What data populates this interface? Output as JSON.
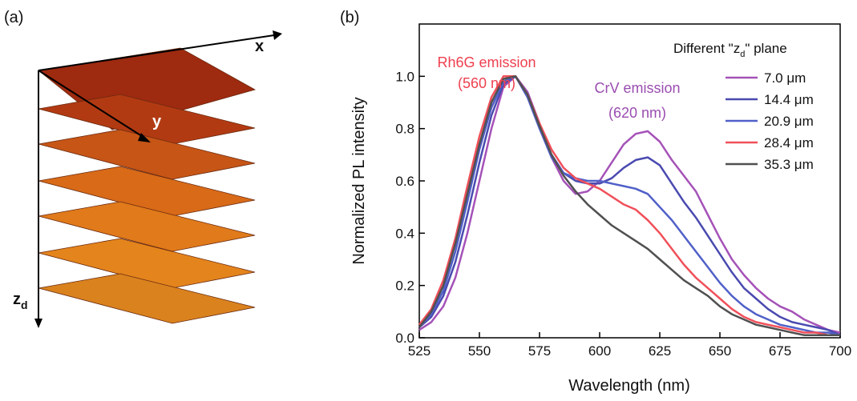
{
  "panel_a": {
    "label": "(a)",
    "x_axis": "x",
    "y_axis": "y",
    "z_axis": "z",
    "z_sub": "d"
  },
  "chart_data": {
    "type": "line",
    "panel_label": "(b)",
    "x_label": "Wavelength (nm)",
    "y_label": "Normalized PL intensity",
    "legend_title": {
      "before": "Different \"z",
      "sub": "d",
      "after": "\" plane"
    },
    "annotations": [
      {
        "text": "Rh6G emission",
        "color": "#ee4050"
      },
      {
        "text": "(560 nm)",
        "color": "#ee4050"
      },
      {
        "text": "CrV emission",
        "color": "#9a4db0"
      },
      {
        "text": "(620 nm)",
        "color": "#9a4db0"
      }
    ],
    "x": [
      525,
      530,
      535,
      540,
      545,
      550,
      555,
      560,
      565,
      570,
      575,
      580,
      585,
      590,
      595,
      600,
      605,
      610,
      615,
      620,
      625,
      630,
      635,
      640,
      645,
      650,
      655,
      660,
      665,
      670,
      675,
      680,
      685,
      690,
      695,
      700
    ],
    "series": [
      {
        "name": "7.0 μm",
        "color": "#a552b8",
        "values": [
          0.03,
          0.06,
          0.12,
          0.23,
          0.4,
          0.6,
          0.8,
          0.96,
          1.0,
          0.94,
          0.82,
          0.69,
          0.6,
          0.55,
          0.56,
          0.6,
          0.67,
          0.74,
          0.78,
          0.79,
          0.75,
          0.68,
          0.62,
          0.56,
          0.47,
          0.38,
          0.3,
          0.24,
          0.19,
          0.15,
          0.12,
          0.1,
          0.07,
          0.05,
          0.03,
          0.02
        ]
      },
      {
        "name": "14.4 μm",
        "color": "#4a4ab0",
        "values": [
          0.04,
          0.08,
          0.16,
          0.29,
          0.47,
          0.67,
          0.85,
          0.97,
          1.0,
          0.93,
          0.81,
          0.7,
          0.63,
          0.6,
          0.59,
          0.59,
          0.61,
          0.65,
          0.68,
          0.69,
          0.66,
          0.59,
          0.52,
          0.46,
          0.39,
          0.32,
          0.25,
          0.19,
          0.15,
          0.11,
          0.08,
          0.06,
          0.05,
          0.04,
          0.03,
          0.01
        ]
      },
      {
        "name": "20.9 μm",
        "color": "#5060c8",
        "values": [
          0.04,
          0.09,
          0.18,
          0.33,
          0.52,
          0.72,
          0.88,
          0.98,
          1.0,
          0.92,
          0.8,
          0.69,
          0.63,
          0.61,
          0.6,
          0.6,
          0.59,
          0.58,
          0.57,
          0.55,
          0.5,
          0.45,
          0.39,
          0.33,
          0.27,
          0.21,
          0.16,
          0.12,
          0.09,
          0.07,
          0.05,
          0.04,
          0.03,
          0.02,
          0.02,
          0.01
        ]
      },
      {
        "name": "28.4 μm",
        "color": "#f0505a",
        "values": [
          0.05,
          0.11,
          0.22,
          0.38,
          0.58,
          0.77,
          0.92,
          1.0,
          1.0,
          0.93,
          0.82,
          0.72,
          0.65,
          0.61,
          0.59,
          0.57,
          0.54,
          0.51,
          0.49,
          0.45,
          0.4,
          0.34,
          0.28,
          0.23,
          0.19,
          0.15,
          0.11,
          0.08,
          0.06,
          0.05,
          0.04,
          0.03,
          0.02,
          0.02,
          0.01,
          0.01
        ]
      },
      {
        "name": "35.3 μm",
        "color": "#505050",
        "values": [
          0.04,
          0.1,
          0.2,
          0.36,
          0.55,
          0.74,
          0.9,
          0.99,
          1.0,
          0.93,
          0.81,
          0.7,
          0.62,
          0.56,
          0.51,
          0.47,
          0.43,
          0.4,
          0.37,
          0.34,
          0.3,
          0.26,
          0.22,
          0.19,
          0.16,
          0.12,
          0.09,
          0.07,
          0.05,
          0.04,
          0.03,
          0.02,
          0.01,
          0.01,
          0.01,
          0.01
        ]
      }
    ],
    "xlim": [
      525,
      700
    ],
    "xticks": [
      525,
      550,
      575,
      600,
      625,
      650,
      675,
      700
    ],
    "ylim": [
      0,
      1.2
    ],
    "yticks": [
      {
        "value": 0,
        "label": "0.0"
      },
      0.2,
      0.4,
      0.6,
      0.8,
      {
        "value": 1,
        "label": "1.0"
      }
    ]
  }
}
